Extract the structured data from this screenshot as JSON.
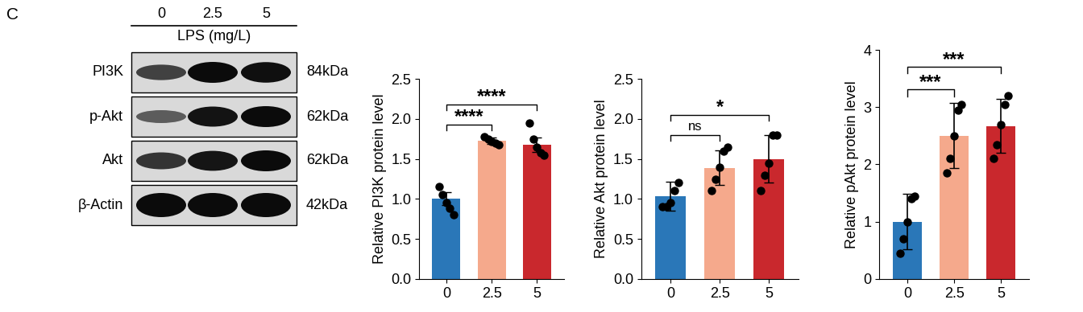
{
  "panel_label": "C",
  "blot": {
    "lanes": [
      "0",
      "2.5",
      "5"
    ],
    "treatment_label": "LPS (mg/L)",
    "rows": [
      {
        "name": "PI3K",
        "size": "84kDa"
      },
      {
        "name": "p-Akt",
        "size": "62kDa"
      },
      {
        "name": "Akt",
        "size": "62kDa"
      },
      {
        "name": "β-Actin",
        "size": "42kDa"
      }
    ]
  },
  "chart_data": [
    {
      "type": "bar",
      "y_label": "Relative PI3K protein level",
      "categories": [
        "0",
        "2.5",
        "5"
      ],
      "values": [
        1.0,
        1.73,
        1.68
      ],
      "errors": [
        0.08,
        0.04,
        0.09
      ],
      "points": [
        [
          1.15,
          1.05,
          0.95,
          0.88,
          0.8
        ],
        [
          1.78,
          1.75,
          1.72,
          1.7,
          1.68
        ],
        [
          1.95,
          1.75,
          1.65,
          1.58,
          1.55
        ]
      ],
      "colors": [
        "#2a77b8",
        "#f5a98c",
        "#c9282d"
      ],
      "ylim": [
        0,
        2.5
      ],
      "yticks": [
        {
          "value": 0,
          "label": "0.0"
        },
        {
          "value": 0.5,
          "label": "0.5"
        },
        {
          "value": 1.0,
          "label": "1.0"
        },
        {
          "value": 1.5,
          "label": "1.5"
        },
        {
          "value": 2.0,
          "label": "2.0"
        },
        {
          "value": 2.5,
          "label": "2.5"
        }
      ],
      "comparisons": [
        {
          "groups": [
            "0",
            "2.5"
          ],
          "label": "****"
        },
        {
          "groups": [
            "0",
            "5"
          ],
          "label": "****"
        }
      ]
    },
    {
      "type": "bar",
      "y_label": "Relative Akt protein level",
      "categories": [
        "0",
        "2.5",
        "5"
      ],
      "values": [
        1.03,
        1.39,
        1.5
      ],
      "errors": [
        0.18,
        0.22,
        0.3
      ],
      "points": [
        [
          0.9,
          0.9,
          0.95,
          1.1,
          1.2
        ],
        [
          1.1,
          1.25,
          1.4,
          1.6,
          1.65
        ],
        [
          1.1,
          1.3,
          1.45,
          1.8,
          1.8
        ]
      ],
      "colors": [
        "#2a77b8",
        "#f5a98c",
        "#c9282d"
      ],
      "ylim": [
        0,
        2.5
      ],
      "yticks": [
        {
          "value": 0,
          "label": "0.0"
        },
        {
          "value": 0.5,
          "label": "0.5"
        },
        {
          "value": 1.0,
          "label": "1.0"
        },
        {
          "value": 1.5,
          "label": "1.5"
        },
        {
          "value": 2.0,
          "label": "2.0"
        },
        {
          "value": 2.5,
          "label": "2.5"
        }
      ],
      "comparisons": [
        {
          "groups": [
            "0",
            "2.5"
          ],
          "label": "ns"
        },
        {
          "groups": [
            "0",
            "5"
          ],
          "label": "*"
        }
      ]
    },
    {
      "type": "bar",
      "y_label": "Relative pAkt protein level",
      "categories": [
        "0",
        "2.5",
        "5"
      ],
      "values": [
        1.0,
        2.5,
        2.67
      ],
      "errors": [
        0.48,
        0.57,
        0.47
      ],
      "points": [
        [
          0.45,
          0.7,
          1.0,
          1.4,
          1.45
        ],
        [
          1.85,
          2.1,
          2.5,
          2.95,
          3.05
        ],
        [
          2.1,
          2.35,
          2.7,
          3.05,
          3.2
        ]
      ],
      "colors": [
        "#2a77b8",
        "#f5a98c",
        "#c9282d"
      ],
      "ylim": [
        0,
        4
      ],
      "yticks": [
        0,
        1,
        2,
        3,
        4
      ],
      "comparisons": [
        {
          "groups": [
            "0",
            "2.5"
          ],
          "label": "***"
        },
        {
          "groups": [
            "0",
            "5"
          ],
          "label": "***"
        }
      ]
    }
  ]
}
